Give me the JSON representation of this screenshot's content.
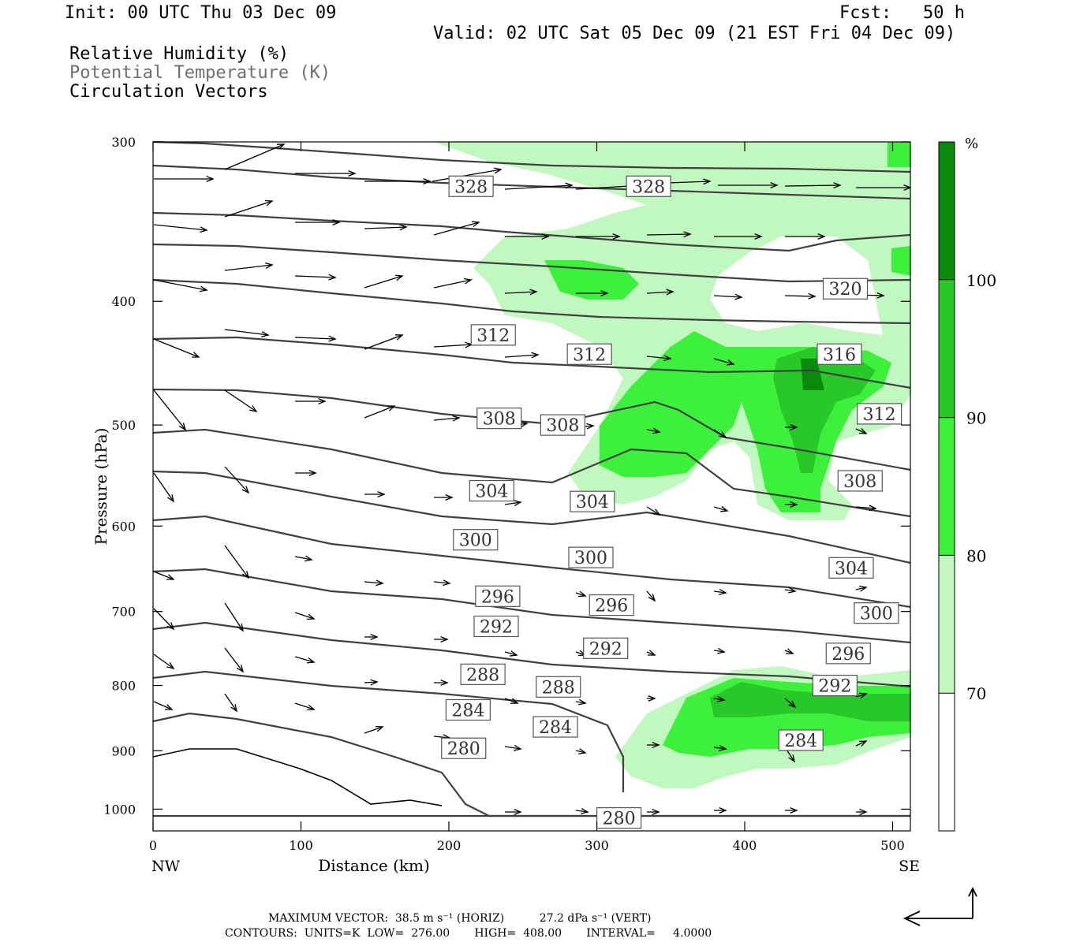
{
  "header": {
    "init": "Init: 00 UTC Thu 03 Dec 09",
    "fcst": "Fcst:   50 h",
    "valid": "Valid: 02 UTC Sat 05 Dec 09 (21 EST Fri 04 Dec 09)"
  },
  "legend_titles": {
    "rh": "Relative Humidity (%)",
    "theta": "Potential Temperature (K)",
    "vectors": "Circulation Vectors"
  },
  "footer": {
    "max_vector": "MAXIMUM VECTOR:  38.5 m s⁻¹ (HORIZ)          27.2 dPa s⁻¹ (VERT)",
    "contours": "CONTOURS:  UNITS=K  LOW=  276.00       HIGH=  408.00       INTERVAL=     4.0000"
  },
  "colors": {
    "rh_70_80": "#c0f8c0",
    "rh_80_90": "#3cf03c",
    "rh_90_100": "#28c828",
    "rh_100": "#0a8a0a",
    "contour": "#404040"
  },
  "chart_data": {
    "type": "contour",
    "xlabel": "Distance (km)",
    "ylabel": "Pressure (hPa)",
    "xlim": [
      0,
      512
    ],
    "ylim": [
      1040,
      300
    ],
    "y_log_scale": true,
    "x_ticks": [
      0,
      100,
      200,
      300,
      400,
      500
    ],
    "y_ticks": [
      300,
      400,
      500,
      600,
      700,
      800,
      900,
      1000
    ],
    "x_end_labels": [
      "NW",
      "SE"
    ],
    "colorbar": {
      "unit": "%",
      "levels": [
        70,
        80,
        90,
        100
      ],
      "colors": [
        "#ffffff",
        "#c0f8c0",
        "#3cf03c",
        "#28c828",
        "#0a8a0a"
      ]
    },
    "theta_labels": [
      {
        "value": "328",
        "x": 215,
        "p": 325
      },
      {
        "value": "328",
        "x": 335,
        "p": 325
      },
      {
        "value": "320",
        "x": 468,
        "p": 391
      },
      {
        "value": "316",
        "x": 464,
        "p": 440
      },
      {
        "value": "312",
        "x": 230,
        "p": 425
      },
      {
        "value": "312",
        "x": 295,
        "p": 440
      },
      {
        "value": "312",
        "x": 491,
        "p": 490
      },
      {
        "value": "308",
        "x": 234,
        "p": 494
      },
      {
        "value": "308",
        "x": 277,
        "p": 500
      },
      {
        "value": "308",
        "x": 478,
        "p": 553
      },
      {
        "value": "304",
        "x": 229,
        "p": 563
      },
      {
        "value": "304",
        "x": 297,
        "p": 574
      },
      {
        "value": "304",
        "x": 472,
        "p": 647
      },
      {
        "value": "300",
        "x": 218,
        "p": 615
      },
      {
        "value": "300",
        "x": 296,
        "p": 635
      },
      {
        "value": "300",
        "x": 489,
        "p": 702
      },
      {
        "value": "296",
        "x": 233,
        "p": 681
      },
      {
        "value": "296",
        "x": 310,
        "p": 692
      },
      {
        "value": "296",
        "x": 470,
        "p": 755
      },
      {
        "value": "292",
        "x": 232,
        "p": 719
      },
      {
        "value": "292",
        "x": 306,
        "p": 748
      },
      {
        "value": "292",
        "x": 461,
        "p": 800
      },
      {
        "value": "288",
        "x": 223,
        "p": 784
      },
      {
        "value": "288",
        "x": 274,
        "p": 802
      },
      {
        "value": "284",
        "x": 213,
        "p": 836
      },
      {
        "value": "284",
        "x": 272,
        "p": 862
      },
      {
        "value": "284",
        "x": 438,
        "p": 883
      },
      {
        "value": "280",
        "x": 210,
        "p": 896
      },
      {
        "value": "280",
        "x": 315,
        "p": 1016
      }
    ]
  }
}
